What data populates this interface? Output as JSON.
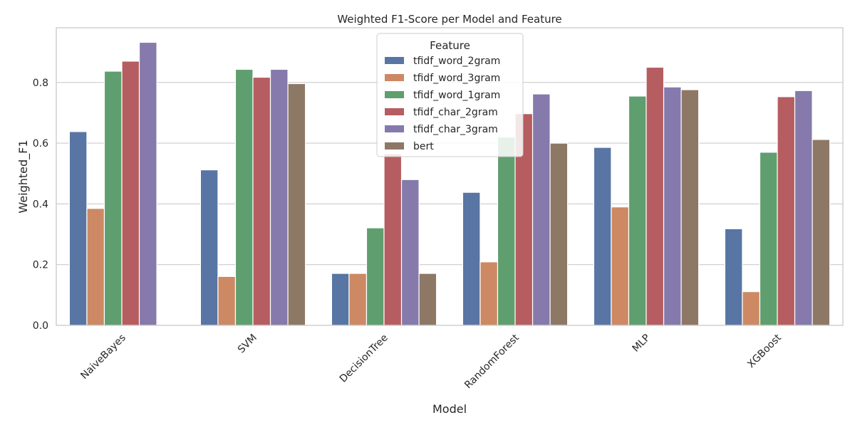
{
  "chart_data": {
    "type": "bar",
    "title": "Weighted F1-Score per Model and Feature",
    "xlabel": "Model",
    "ylabel": "Weighted_F1",
    "ylim": [
      0,
      0.98
    ],
    "yticks": [
      0.0,
      0.2,
      0.4,
      0.6,
      0.8
    ],
    "ytick_labels": [
      "0.0",
      "0.2",
      "0.4",
      "0.6",
      "0.8"
    ],
    "grid": "horizontal",
    "categories": [
      "NaiveBayes",
      "SVM",
      "DecisionTree",
      "RandomForest",
      "MLP",
      "XGBoost"
    ],
    "legend": {
      "title": "Feature",
      "placement": "top-center"
    },
    "series": [
      {
        "name": "tfidf_word_2gram",
        "color": "#5875a4",
        "values": [
          0.638,
          0.512,
          0.171,
          0.438,
          0.586,
          0.318
        ]
      },
      {
        "name": "tfidf_word_3gram",
        "color": "#cc8963",
        "values": [
          0.385,
          0.161,
          0.171,
          0.209,
          0.39,
          0.111
        ]
      },
      {
        "name": "tfidf_word_1gram",
        "color": "#5f9e6e",
        "values": [
          0.837,
          0.843,
          0.321,
          0.62,
          0.755,
          0.57
        ]
      },
      {
        "name": "tfidf_char_2gram",
        "color": "#b55d60",
        "values": [
          0.87,
          0.817,
          0.565,
          0.697,
          0.85,
          0.753
        ]
      },
      {
        "name": "tfidf_char_3gram",
        "color": "#857aab",
        "values": [
          0.932,
          0.843,
          0.48,
          0.762,
          0.785,
          0.773
        ]
      },
      {
        "name": "bert",
        "color": "#8d7866",
        "values": [
          0.0,
          0.796,
          0.171,
          0.6,
          0.776,
          0.612
        ]
      }
    ]
  }
}
